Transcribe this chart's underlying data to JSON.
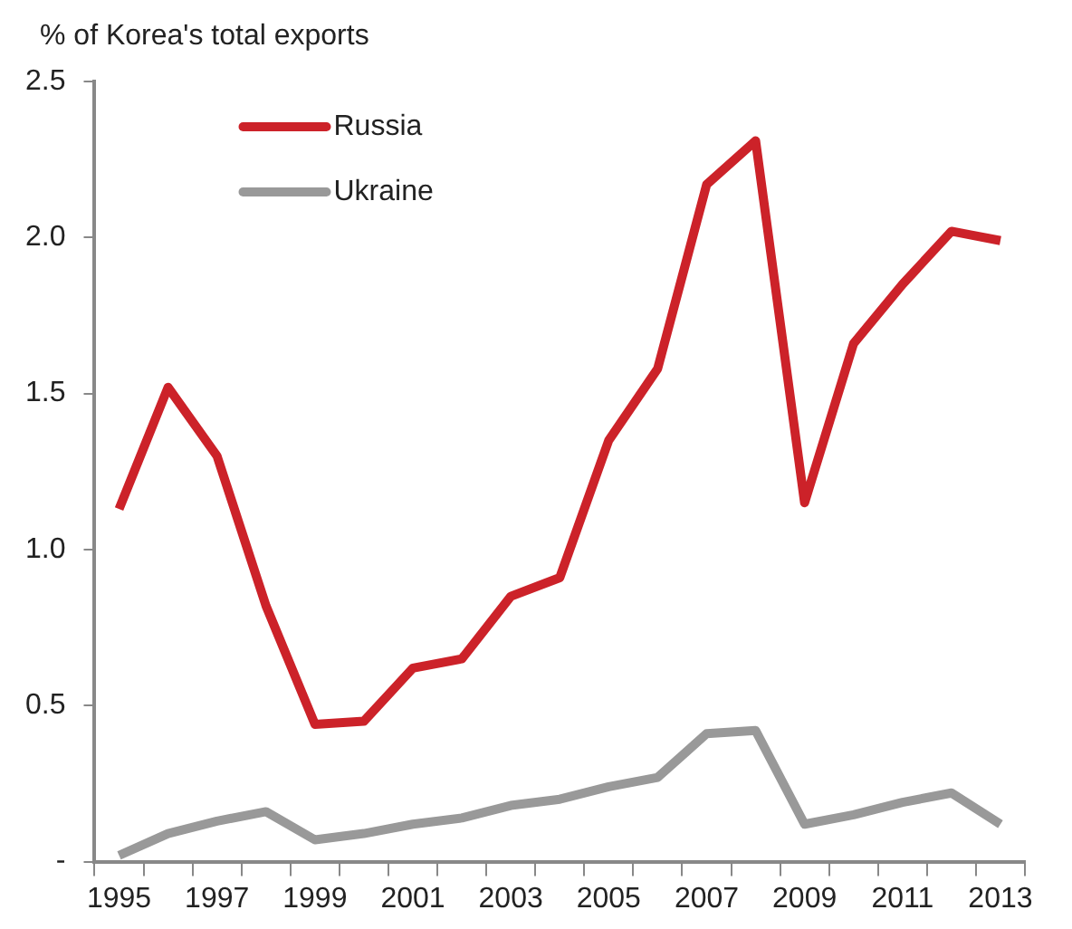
{
  "chart_data": {
    "type": "line",
    "ylabel": "% of Korea's total exports",
    "categories": [
      "1995",
      null,
      "1997",
      null,
      "1999",
      null,
      "2001",
      null,
      "2003",
      null,
      "2005",
      null,
      "2007",
      null,
      "2009",
      null,
      "2011",
      null,
      "2013"
    ],
    "series": [
      {
        "name": "Russia",
        "color": "#cc2229",
        "values": [
          1.13,
          1.52,
          1.3,
          0.82,
          0.44,
          0.45,
          0.62,
          0.65,
          0.85,
          0.91,
          1.35,
          1.58,
          2.17,
          2.31,
          1.15,
          1.66,
          1.85,
          2.02,
          1.99
        ]
      },
      {
        "name": "Ukraine",
        "color": "#999999",
        "values": [
          0.02,
          0.09,
          0.13,
          0.16,
          0.07,
          0.09,
          0.12,
          0.14,
          0.18,
          0.2,
          0.24,
          0.27,
          0.41,
          0.42,
          0.12,
          0.15,
          0.19,
          0.22,
          0.12
        ]
      }
    ],
    "ylim": [
      0,
      2.5
    ],
    "yticks": [
      {
        "value": 0,
        "label": "-"
      },
      0.5,
      {
        "value": 1,
        "label": "1.0"
      },
      1.5,
      {
        "value": 2,
        "label": "2.0"
      },
      2.5
    ],
    "grid": false,
    "legend": "top left",
    "marker": "none",
    "line_style": "solid"
  }
}
